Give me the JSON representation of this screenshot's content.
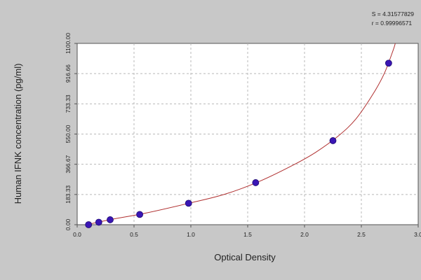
{
  "chart_data": {
    "type": "scatter",
    "xlabel": "Optical Density",
    "ylabel": "Human IFNK concentration (pg/ml)",
    "xlim": [
      0,
      3.0
    ],
    "ylim": [
      0,
      1100
    ],
    "x_ticks": [
      "0.0",
      "0.5",
      "1.0",
      "1.5",
      "2.0",
      "2.5",
      "3.0"
    ],
    "y_ticks": [
      "0.00",
      "183.33",
      "366.67",
      "550.00",
      "733.33",
      "916.66",
      "1100.00"
    ],
    "grid": true,
    "stats": [
      "S = 4.31577829",
      "r = 0.99996571"
    ],
    "points": [
      {
        "x": 0.1,
        "y": 0
      },
      {
        "x": 0.19,
        "y": 15
      },
      {
        "x": 0.29,
        "y": 30
      },
      {
        "x": 0.55,
        "y": 62
      },
      {
        "x": 0.98,
        "y": 130
      },
      {
        "x": 1.57,
        "y": 255
      },
      {
        "x": 2.25,
        "y": 510
      },
      {
        "x": 2.74,
        "y": 980
      }
    ],
    "fit_curve": [
      {
        "x": 0.05,
        "y": -5
      },
      {
        "x": 0.3,
        "y": 32
      },
      {
        "x": 0.6,
        "y": 70
      },
      {
        "x": 1.0,
        "y": 133
      },
      {
        "x": 1.3,
        "y": 185
      },
      {
        "x": 1.6,
        "y": 262
      },
      {
        "x": 1.9,
        "y": 362
      },
      {
        "x": 2.1,
        "y": 440
      },
      {
        "x": 2.3,
        "y": 540
      },
      {
        "x": 2.45,
        "y": 640
      },
      {
        "x": 2.6,
        "y": 790
      },
      {
        "x": 2.7,
        "y": 915
      },
      {
        "x": 2.78,
        "y": 1060
      },
      {
        "x": 2.8,
        "y": 1105
      }
    ],
    "colors": {
      "point": "#3a16b5",
      "curve": "#b03030",
      "grid": "#b8b8b8",
      "axis": "#555555"
    }
  }
}
